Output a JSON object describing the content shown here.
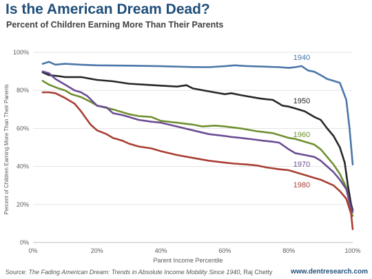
{
  "header": {
    "title": "Is the American Dream Dead?",
    "subtitle": "Percent of Children Earning More Than Their Parents"
  },
  "footer": {
    "source_prefix": "Source: ",
    "source_title": "The Fading American Dream: Trends in Absolute Income Mobility Since 1940",
    "source_suffix": ", Raj Chetty",
    "website": "www.dentresearch.com"
  },
  "colors": {
    "title": "#1f4e79",
    "s1940": "#4a76a8",
    "s1950": "#262626",
    "s1960": "#6f8f2f",
    "s1970": "#6b4c93",
    "s1980": "#a83e34"
  },
  "chart_data": {
    "type": "line",
    "xlabel": "Parent Income Percentile",
    "ylabel": "Percent of Children Earning More Than Their Parents",
    "xlim": [
      0,
      100
    ],
    "ylim": [
      0,
      100
    ],
    "xticks": [
      0,
      20,
      40,
      60,
      80,
      100
    ],
    "yticks": [
      0,
      20,
      40,
      60,
      80,
      100
    ],
    "xtick_labels": [
      "0%",
      "20%",
      "40%",
      "60%",
      "80%",
      "100%"
    ],
    "ytick_labels": [
      "0%",
      "20%",
      "40%",
      "60%",
      "80%",
      "100%"
    ],
    "grid": "horizontal",
    "series": [
      {
        "name": "1940",
        "color": "#4a76a8",
        "x": [
          3,
          5,
          7,
          10,
          15,
          20,
          30,
          40,
          50,
          55,
          60,
          63,
          67,
          72,
          77,
          80,
          82,
          84,
          86,
          88,
          90,
          92,
          94,
          96,
          98,
          99,
          100
        ],
        "y": [
          94,
          95,
          93.5,
          94,
          93.5,
          93.2,
          93,
          92.7,
          92.3,
          92.2,
          92.7,
          93.2,
          92.8,
          92.5,
          92.2,
          91.8,
          92.2,
          92.8,
          90.5,
          89.8,
          88,
          86,
          85,
          84,
          75,
          60,
          41
        ]
      },
      {
        "name": "1950",
        "color": "#262626",
        "x": [
          3,
          5,
          8,
          10,
          15,
          20,
          25,
          30,
          35,
          40,
          45,
          48,
          50,
          55,
          60,
          62,
          65,
          70,
          72,
          75,
          77,
          78,
          80,
          82,
          85,
          88,
          90,
          92,
          94,
          96,
          97.5,
          98.5,
          99.5,
          100
        ],
        "y": [
          89.5,
          88,
          87.5,
          87,
          87,
          85.5,
          84.8,
          83.5,
          83,
          82.5,
          82,
          82.7,
          81,
          79.5,
          78,
          78.5,
          77.5,
          76,
          75.5,
          75,
          73,
          72,
          71.5,
          70.5,
          69,
          66,
          64.5,
          60,
          56,
          50,
          42,
          30,
          20,
          17
        ]
      },
      {
        "name": "1960",
        "color": "#6f8f2f",
        "x": [
          3,
          5,
          8,
          10,
          12,
          15,
          18,
          20,
          25,
          30,
          33,
          37,
          40,
          45,
          50,
          53,
          57,
          60,
          65,
          70,
          75,
          78,
          80,
          82,
          85,
          88,
          90,
          92,
          94,
          96,
          98,
          99.5,
          100
        ],
        "y": [
          85,
          83,
          81,
          80,
          78,
          76.5,
          74,
          72,
          70,
          67.5,
          66.5,
          66,
          64,
          63,
          62,
          61,
          61.5,
          61,
          60,
          58.5,
          57.5,
          56,
          55,
          54.5,
          53,
          51.5,
          49,
          45,
          41,
          36,
          29,
          16,
          14
        ]
      },
      {
        "name": "1970",
        "color": "#6b4c93",
        "x": [
          3,
          5,
          7,
          10,
          13,
          15,
          17,
          20,
          23,
          25,
          28,
          30,
          33,
          37,
          40,
          45,
          50,
          55,
          60,
          62,
          65,
          70,
          72,
          75,
          77,
          80,
          82,
          85,
          88,
          90,
          92,
          94,
          96,
          98,
          99.5,
          100
        ],
        "y": [
          90,
          89,
          86,
          83,
          80,
          79,
          77,
          72,
          71,
          68,
          67,
          66,
          64.5,
          63.5,
          63,
          61,
          59,
          57,
          56,
          55.5,
          55,
          54,
          53.5,
          53,
          52.5,
          49,
          47,
          46,
          45,
          43,
          40,
          37,
          33,
          28,
          18,
          16
        ]
      },
      {
        "name": "1980",
        "color": "#a83e34",
        "x": [
          3,
          5,
          7,
          10,
          13,
          15,
          18,
          20,
          23,
          25,
          28,
          30,
          33,
          37,
          40,
          45,
          50,
          55,
          60,
          63,
          67,
          70,
          73,
          77,
          80,
          82,
          85,
          88,
          90,
          92,
          94,
          96,
          98,
          99.5,
          100
        ],
        "y": [
          79,
          79,
          78.5,
          76,
          73,
          69,
          62,
          59,
          57,
          55,
          53.5,
          52,
          50.5,
          49.5,
          48,
          46,
          44.5,
          43,
          42,
          41.5,
          41,
          40.5,
          39.5,
          38.5,
          38,
          37,
          35.5,
          34,
          33,
          31.5,
          30,
          27,
          23,
          15,
          7
        ]
      }
    ],
    "series_label_positions": "right-end"
  }
}
